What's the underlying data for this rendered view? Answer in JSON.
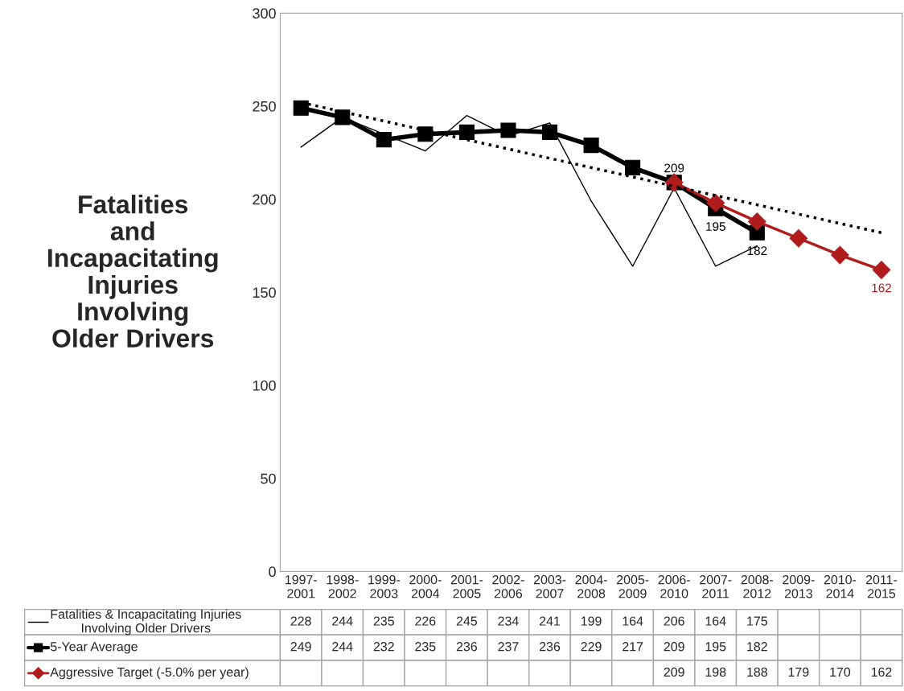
{
  "chart_data": {
    "type": "line",
    "title": "Fatalities\nand\nIncapacitating\nInjuries\nInvolving\nOlder Drivers",
    "categories": [
      "1997-2001",
      "1998-2002",
      "1999-2003",
      "2000-2004",
      "2001-2005",
      "2002-2006",
      "2003-2007",
      "2004-2008",
      "2005-2009",
      "2006-2010",
      "2007-2011",
      "2008-2012",
      "2009-2013",
      "2010-2014",
      "2011-2015"
    ],
    "series": [
      {
        "name": "Fatalities & Incapacitating Injuries\nInvolving Older Drivers",
        "color": "#000000",
        "marker": "none",
        "line_style": "solid",
        "data_labels": true,
        "values": [
          228,
          244,
          235,
          226,
          245,
          234,
          241,
          199,
          164,
          206,
          164,
          175,
          null,
          null,
          null
        ]
      },
      {
        "name": "5-Year Average",
        "color": "#000000",
        "marker": "square",
        "line_style": "solid",
        "values": [
          249,
          244,
          232,
          235,
          236,
          237,
          236,
          229,
          217,
          209,
          195,
          182,
          null,
          null,
          null
        ],
        "data_labels": true
      },
      {
        "name": "Aggressive Target (-5.0% per year)",
        "color": "#b01c1c",
        "marker": "diamond",
        "line_style": "solid",
        "values": [
          null,
          null,
          null,
          null,
          null,
          null,
          null,
          null,
          null,
          209,
          198,
          188,
          179,
          170,
          162
        ],
        "data_labels": true
      },
      {
        "color": "#000000",
        "marker": "none",
        "line_style": "dotted",
        "values": [
          252,
          247,
          242,
          237,
          232,
          227,
          222,
          217,
          212,
          207,
          202,
          197,
          192,
          187,
          182
        ]
      }
    ],
    "ylim": [
      0,
      300
    ],
    "yticks": [
      0,
      50,
      100,
      150,
      200,
      250,
      300
    ],
    "grid": false,
    "legend": "bottom",
    "annotations": [
      {
        "text": "209",
        "x": "2006-2010",
        "y": 209
      },
      {
        "text": "195",
        "x": "2007-2011",
        "y": 195
      },
      {
        "text": "182",
        "x": "2008-2012",
        "y": 182
      },
      {
        "text": "162",
        "x": "2011-2015",
        "y": 162
      }
    ]
  }
}
